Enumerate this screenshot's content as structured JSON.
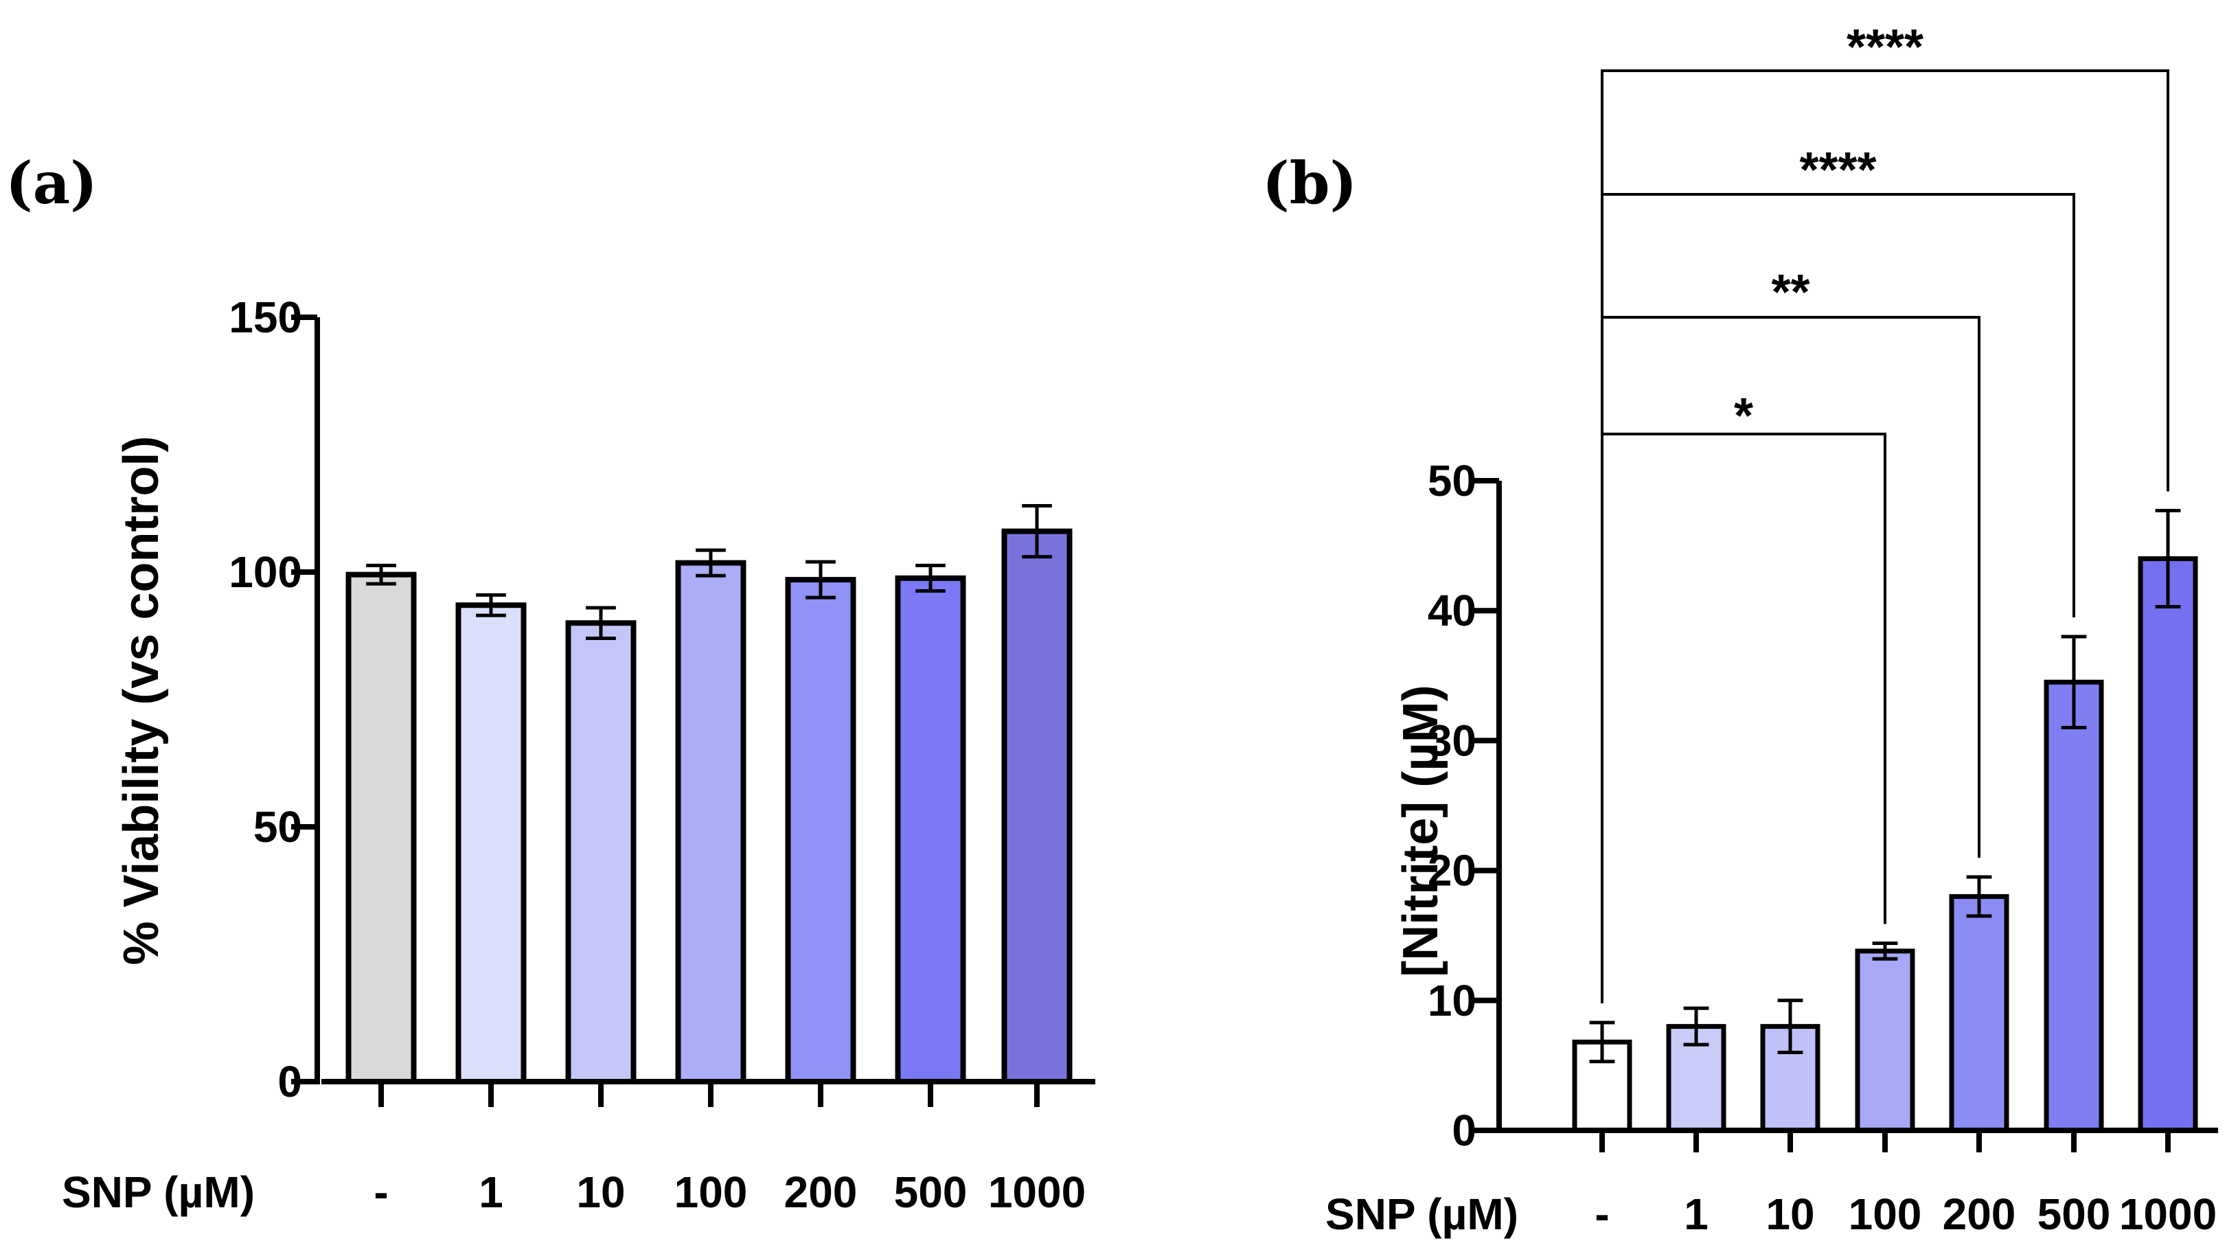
{
  "chart_data": [
    {
      "id": "a",
      "type": "bar",
      "panel_label": "(a)",
      "xlabel": "SNP (µM)",
      "ylabel": "% Viability (vs control)",
      "categories": [
        "-",
        "1",
        "10",
        "100",
        "200",
        "500",
        "1000"
      ],
      "values": [
        99.5,
        93.5,
        90,
        101.8,
        98.5,
        98.8,
        108
      ],
      "errors": [
        1.8,
        2.0,
        3.0,
        2.5,
        3.5,
        2.5,
        5.0
      ],
      "colors": [
        "#d9d9d9",
        "#dcdffb",
        "#c5c6f8",
        "#acadf7",
        "#9192f5",
        "#7b79f4",
        "#7a72dc"
      ],
      "ylim": [
        0,
        150
      ],
      "yticks": [
        0,
        50,
        100,
        150
      ],
      "significance": []
    },
    {
      "id": "b",
      "type": "bar",
      "panel_label": "(b)",
      "xlabel": "SNP (µM)",
      "ylabel": "[Nitrite] (µM)",
      "categories": [
        "-",
        "1",
        "10",
        "100",
        "200",
        "500",
        "1000"
      ],
      "values": [
        6.8,
        8.0,
        8.0,
        13.8,
        18.0,
        34.5,
        44.0
      ],
      "errors": [
        1.5,
        1.4,
        2.0,
        0.6,
        1.5,
        3.5,
        3.7
      ],
      "colors": [
        "#ffffff",
        "#c9cbf9",
        "#c0c1f8",
        "#a8a9f6",
        "#8b8df5",
        "#7f7ef3",
        "#7470f0"
      ],
      "ylim": [
        0,
        50
      ],
      "yticks": [
        0,
        10,
        20,
        30,
        40,
        50
      ],
      "significance": [
        {
          "from": "-",
          "to": "100",
          "label": "*"
        },
        {
          "from": "-",
          "to": "200",
          "label": "**"
        },
        {
          "from": "-",
          "to": "500",
          "label": "****"
        },
        {
          "from": "-",
          "to": "1000",
          "label": "****"
        }
      ]
    }
  ]
}
